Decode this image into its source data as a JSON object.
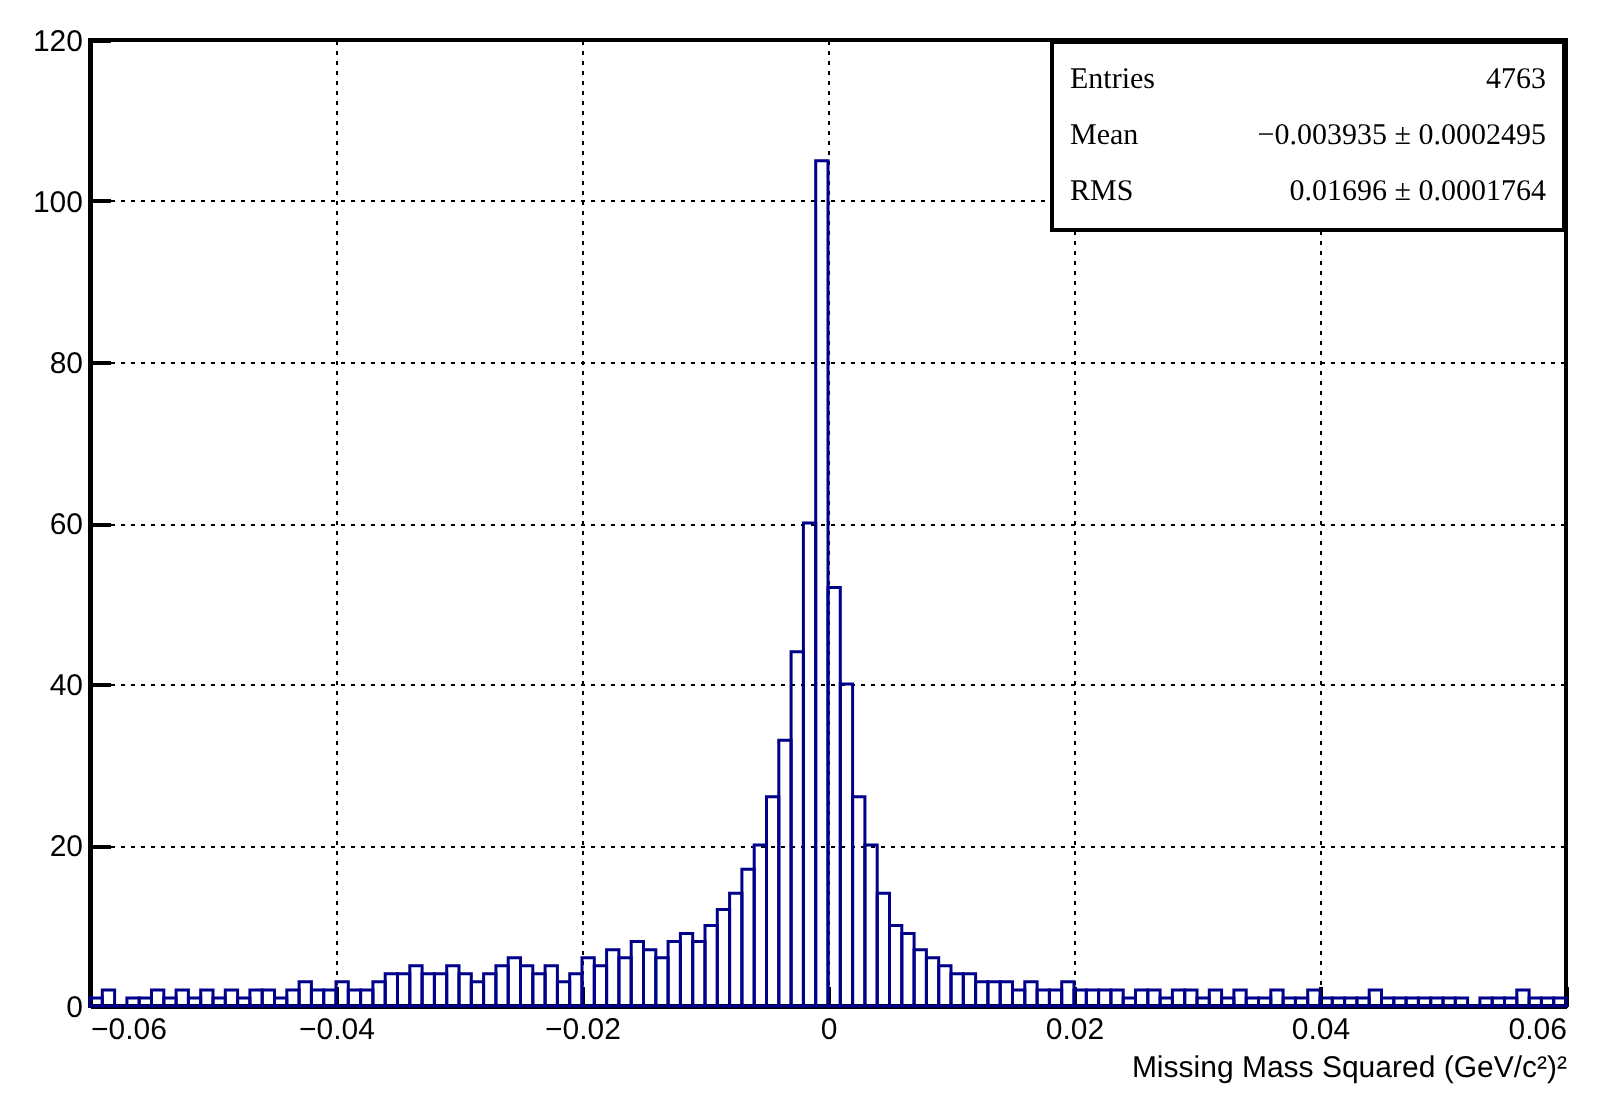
{
  "chart_data": {
    "type": "histogram",
    "xlabel": "Missing Mass Squared (GeV/c²)²",
    "bins": [
      -0.06,
      -0.059,
      -0.058,
      -0.057,
      -0.056,
      -0.055,
      -0.054,
      -0.053,
      -0.052,
      -0.051,
      -0.05,
      -0.049,
      -0.048,
      -0.047,
      -0.046,
      -0.045,
      -0.044,
      -0.043,
      -0.042,
      -0.041,
      -0.04,
      -0.039,
      -0.038,
      -0.037,
      -0.036,
      -0.035,
      -0.034,
      -0.033,
      -0.032,
      -0.031,
      -0.03,
      -0.029,
      -0.028,
      -0.027,
      -0.026,
      -0.025,
      -0.024,
      -0.023,
      -0.022,
      -0.021,
      -0.02,
      -0.019,
      -0.018,
      -0.017,
      -0.016,
      -0.015,
      -0.014,
      -0.013,
      -0.012,
      -0.011,
      -0.01,
      -0.009,
      -0.008,
      -0.007,
      -0.006,
      -0.005,
      -0.004,
      -0.003,
      -0.002,
      -0.001,
      0,
      0.001,
      0.002,
      0.003,
      0.004,
      0.005,
      0.006,
      0.007,
      0.008,
      0.009,
      0.01,
      0.011,
      0.012,
      0.013,
      0.014,
      0.015,
      0.016,
      0.017,
      0.018,
      0.019,
      0.02,
      0.021,
      0.022,
      0.023,
      0.024,
      0.025,
      0.026,
      0.027,
      0.028,
      0.029,
      0.03,
      0.031,
      0.032,
      0.033,
      0.034,
      0.035,
      0.036,
      0.037,
      0.038,
      0.039,
      0.04,
      0.041,
      0.042,
      0.043,
      0.044,
      0.045,
      0.046,
      0.047,
      0.048,
      0.049,
      0.05,
      0.051,
      0.052,
      0.053,
      0.054,
      0.055,
      0.056,
      0.057,
      0.058,
      0.059,
      0.06
    ],
    "values": [
      1,
      2,
      0,
      1,
      1,
      2,
      1,
      2,
      1,
      2,
      1,
      2,
      1,
      2,
      2,
      1,
      2,
      3,
      2,
      2,
      3,
      2,
      2,
      3,
      4,
      4,
      5,
      4,
      4,
      5,
      4,
      3,
      4,
      5,
      6,
      5,
      4,
      5,
      3,
      4,
      6,
      5,
      7,
      6,
      8,
      7,
      6,
      8,
      9,
      8,
      10,
      12,
      14,
      17,
      20,
      26,
      33,
      44,
      60,
      105,
      52,
      40,
      26,
      20,
      14,
      10,
      9,
      7,
      6,
      5,
      4,
      4,
      3,
      3,
      3,
      2,
      3,
      2,
      2,
      3,
      2,
      2,
      2,
      2,
      1,
      2,
      2,
      1,
      2,
      2,
      1,
      2,
      1,
      2,
      1,
      1,
      2,
      1,
      1,
      2,
      1,
      1,
      1,
      1,
      2,
      1,
      1,
      1,
      1,
      1,
      1,
      1,
      0,
      1,
      1,
      1,
      2,
      1,
      1,
      1
    ],
    "color": "#00008b",
    "xlim": [
      -0.06,
      0.06
    ],
    "xticks": [
      -0.06,
      -0.04,
      -0.02,
      0,
      0.02,
      0.04,
      0.06
    ],
    "ylim": [
      0,
      120
    ],
    "yticks": [
      0,
      20,
      40,
      60,
      80,
      100,
      120
    ],
    "grid": true,
    "annotations": [
      "Entries 4763",
      "Mean −0.003935 ± 0.0002495",
      "RMS 0.01696 ± 0.0001764"
    ]
  }
}
